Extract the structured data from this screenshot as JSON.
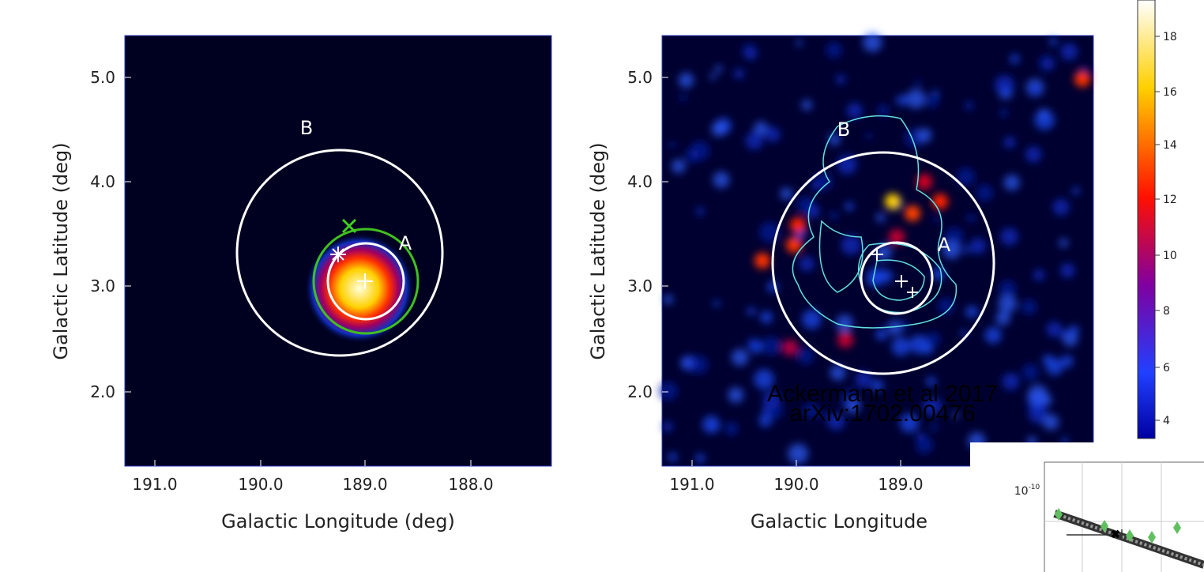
{
  "panels": [
    {
      "y_label": "Galactic Latitude (deg)",
      "x_label": "Galactic Longitude (deg)",
      "y_ticks": [
        "5.0",
        "4.0",
        "3.0",
        "2.0"
      ],
      "x_ticks": [
        "191.0",
        "190.0",
        "189.0",
        "188.0"
      ],
      "region_labels": [
        "B",
        "A"
      ]
    },
    {
      "y_label": "Galactic Latitude (deg)",
      "x_label": "Galactic Longitude",
      "y_ticks": [
        "5.0",
        "4.0",
        "3.0",
        "2.0"
      ],
      "x_ticks": [
        "191.0",
        "190.0",
        "189.0"
      ],
      "region_labels": [
        "B",
        "A"
      ],
      "annotation": [
        "Ackermann et al 2017",
        "arXiv:1702.00476"
      ]
    }
  ],
  "colorbar": {
    "ticks": [
      "18",
      "16",
      "14",
      "12",
      "10",
      "8",
      "6",
      "4"
    ]
  },
  "inset": {
    "y_tick": {
      "base": "10",
      "exponent": "-10"
    }
  }
}
